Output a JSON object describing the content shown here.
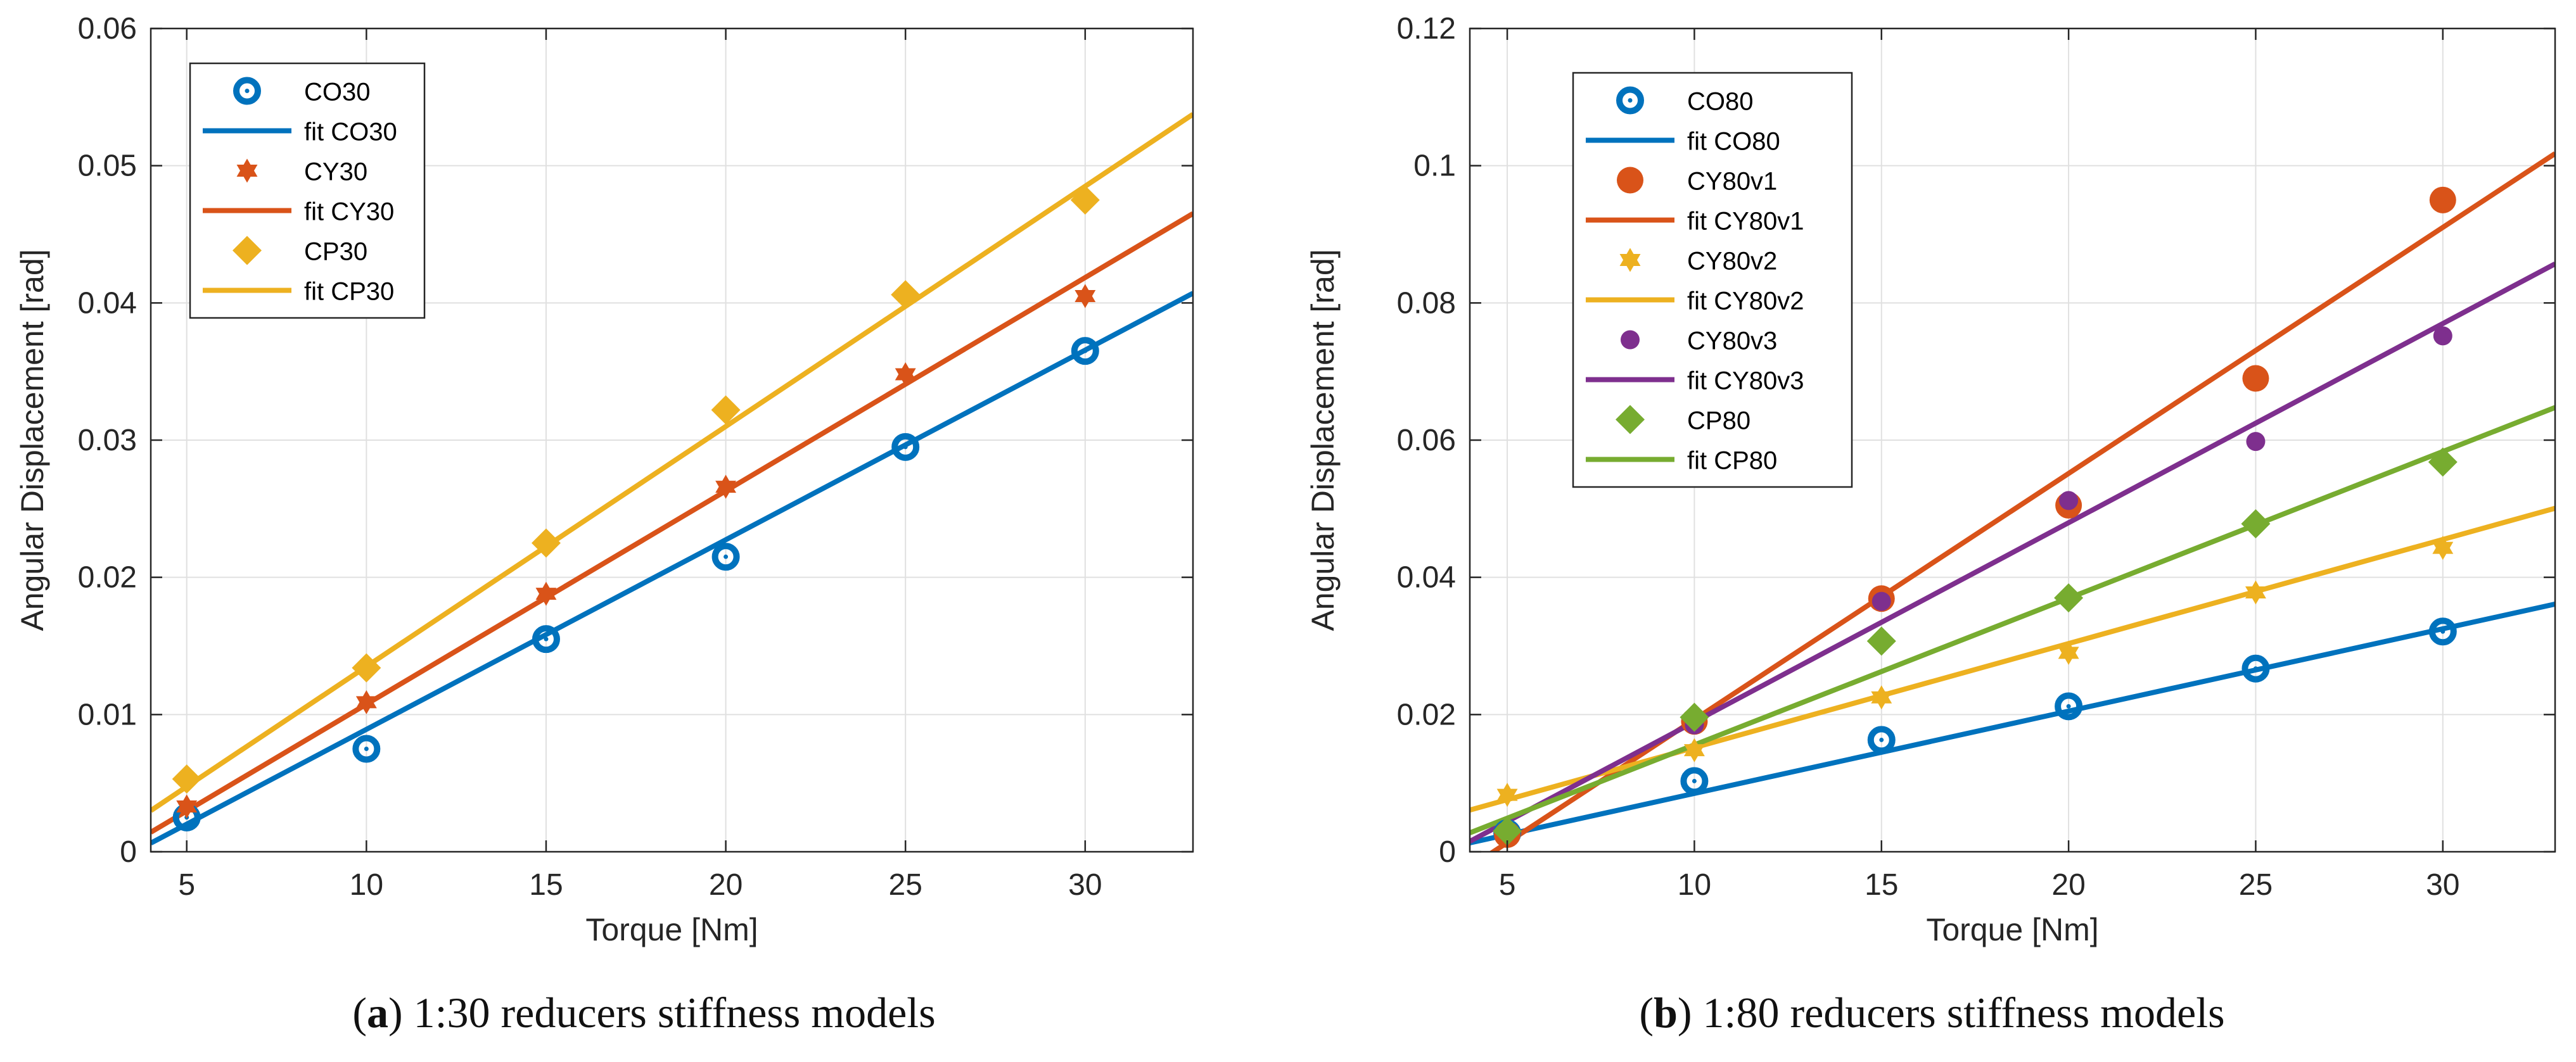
{
  "colors": {
    "blue": "#0072BD",
    "orange": "#D95319",
    "yellow": "#EDB120",
    "purple": "#7E2F8E",
    "green": "#77AC30",
    "grid": "#E0E0E0",
    "axis": "#262626"
  },
  "chart_data": [
    {
      "type": "scatter",
      "panel": "a",
      "caption_letter": "a",
      "caption_text": "1:30 reducers stiffness models",
      "xlabel": "Torque [Nm]",
      "ylabel": "Angular Displacement [rad]",
      "xlim": [
        4,
        33
      ],
      "ylim": [
        0,
        0.06
      ],
      "xticks": [
        5,
        10,
        15,
        20,
        25,
        30
      ],
      "xtick_labels": [
        "5",
        "10",
        "15",
        "20",
        "25",
        "30"
      ],
      "yticks": [
        0,
        0.01,
        0.02,
        0.03,
        0.04,
        0.05,
        0.06
      ],
      "ytick_labels": [
        "0",
        "0.01",
        "0.02",
        "0.03",
        "0.04",
        "0.05",
        "0.06"
      ],
      "grid": true,
      "legend_position": "top-left",
      "series": [
        {
          "name": "CO30",
          "fit_name": "fit CO30",
          "color": "blue",
          "marker": "circle-dot",
          "x": [
            5,
            10,
            15,
            20,
            25,
            30
          ],
          "y": [
            0.0025,
            0.0075,
            0.0155,
            0.0215,
            0.0295,
            0.0365
          ],
          "fit": {
            "slope": 0.001382,
            "intercept": -0.0049
          }
        },
        {
          "name": "CY30",
          "fit_name": "fit CY30",
          "color": "orange",
          "marker": "hexagram",
          "x": [
            5,
            10,
            15,
            20,
            25,
            30
          ],
          "y": [
            0.0033,
            0.0109,
            0.0188,
            0.0266,
            0.0348,
            0.0405
          ],
          "fit": {
            "slope": 0.001555,
            "intercept": -0.0048
          }
        },
        {
          "name": "CP30",
          "fit_name": "fit CP30",
          "color": "yellow",
          "marker": "diamond",
          "x": [
            5,
            10,
            15,
            20,
            25,
            30
          ],
          "y": [
            0.0053,
            0.0134,
            0.0225,
            0.0322,
            0.0406,
            0.0475
          ],
          "fit": {
            "slope": 0.00175,
            "intercept": -0.004
          }
        }
      ]
    },
    {
      "type": "scatter",
      "panel": "b",
      "caption_letter": "b",
      "caption_text": "1:80 reducers stiffness models",
      "xlabel": "Torque [Nm]",
      "ylabel": "Angular Displacement [rad]",
      "xlim": [
        4,
        33
      ],
      "ylim": [
        0,
        0.12
      ],
      "xticks": [
        5,
        10,
        15,
        20,
        25,
        30
      ],
      "xtick_labels": [
        "5",
        "10",
        "15",
        "20",
        "25",
        "30"
      ],
      "yticks": [
        0,
        0.02,
        0.04,
        0.06,
        0.08,
        0.1,
        0.12
      ],
      "ytick_labels": [
        "0",
        "0.02",
        "0.04",
        "0.06",
        "0.08",
        "0.1",
        "0.12"
      ],
      "grid": true,
      "legend_position": "top-left",
      "series": [
        {
          "name": "CO80",
          "fit_name": "fit CO80",
          "color": "blue",
          "marker": "circle-dot",
          "x": [
            5,
            10,
            15,
            20,
            25,
            30
          ],
          "y": [
            0.0027,
            0.0103,
            0.0163,
            0.0212,
            0.0267,
            0.0321
          ],
          "fit": {
            "slope": 0.0012,
            "intercept": -0.0035
          }
        },
        {
          "name": "CY80v1",
          "fit_name": "fit CY80v1",
          "color": "orange",
          "marker": "circle",
          "x": [
            5,
            10,
            15,
            20,
            25,
            30
          ],
          "y": [
            0.0025,
            0.019,
            0.0369,
            0.0505,
            0.069,
            0.095
          ],
          "fit": {
            "slope": 0.003587,
            "intercept": -0.0166
          }
        },
        {
          "name": "CY80v2",
          "fit_name": "fit CY80v2",
          "color": "yellow",
          "marker": "hexagram",
          "x": [
            5,
            10,
            15,
            20,
            25,
            30
          ],
          "y": [
            0.0083,
            0.0148,
            0.0225,
            0.029,
            0.0378,
            0.0443
          ],
          "fit": {
            "slope": 0.001517,
            "intercept": 1e-05
          }
        },
        {
          "name": "CY80v3",
          "fit_name": "fit CY80v3",
          "color": "purple",
          "marker": "dot",
          "x": [
            5,
            10,
            15,
            20,
            25,
            30
          ],
          "y": [
            0.003,
            0.0185,
            0.0365,
            0.0512,
            0.0598,
            0.0752
          ],
          "fit": {
            "slope": 0.002903,
            "intercept": -0.0101
          }
        },
        {
          "name": "CP80",
          "fit_name": "fit CP80",
          "color": "green",
          "marker": "diamond",
          "x": [
            5,
            10,
            15,
            20,
            25,
            30
          ],
          "y": [
            0.003,
            0.0196,
            0.0307,
            0.037,
            0.0478,
            0.0568
          ],
          "fit": {
            "slope": 0.002138,
            "intercept": -0.0058
          }
        }
      ]
    }
  ]
}
